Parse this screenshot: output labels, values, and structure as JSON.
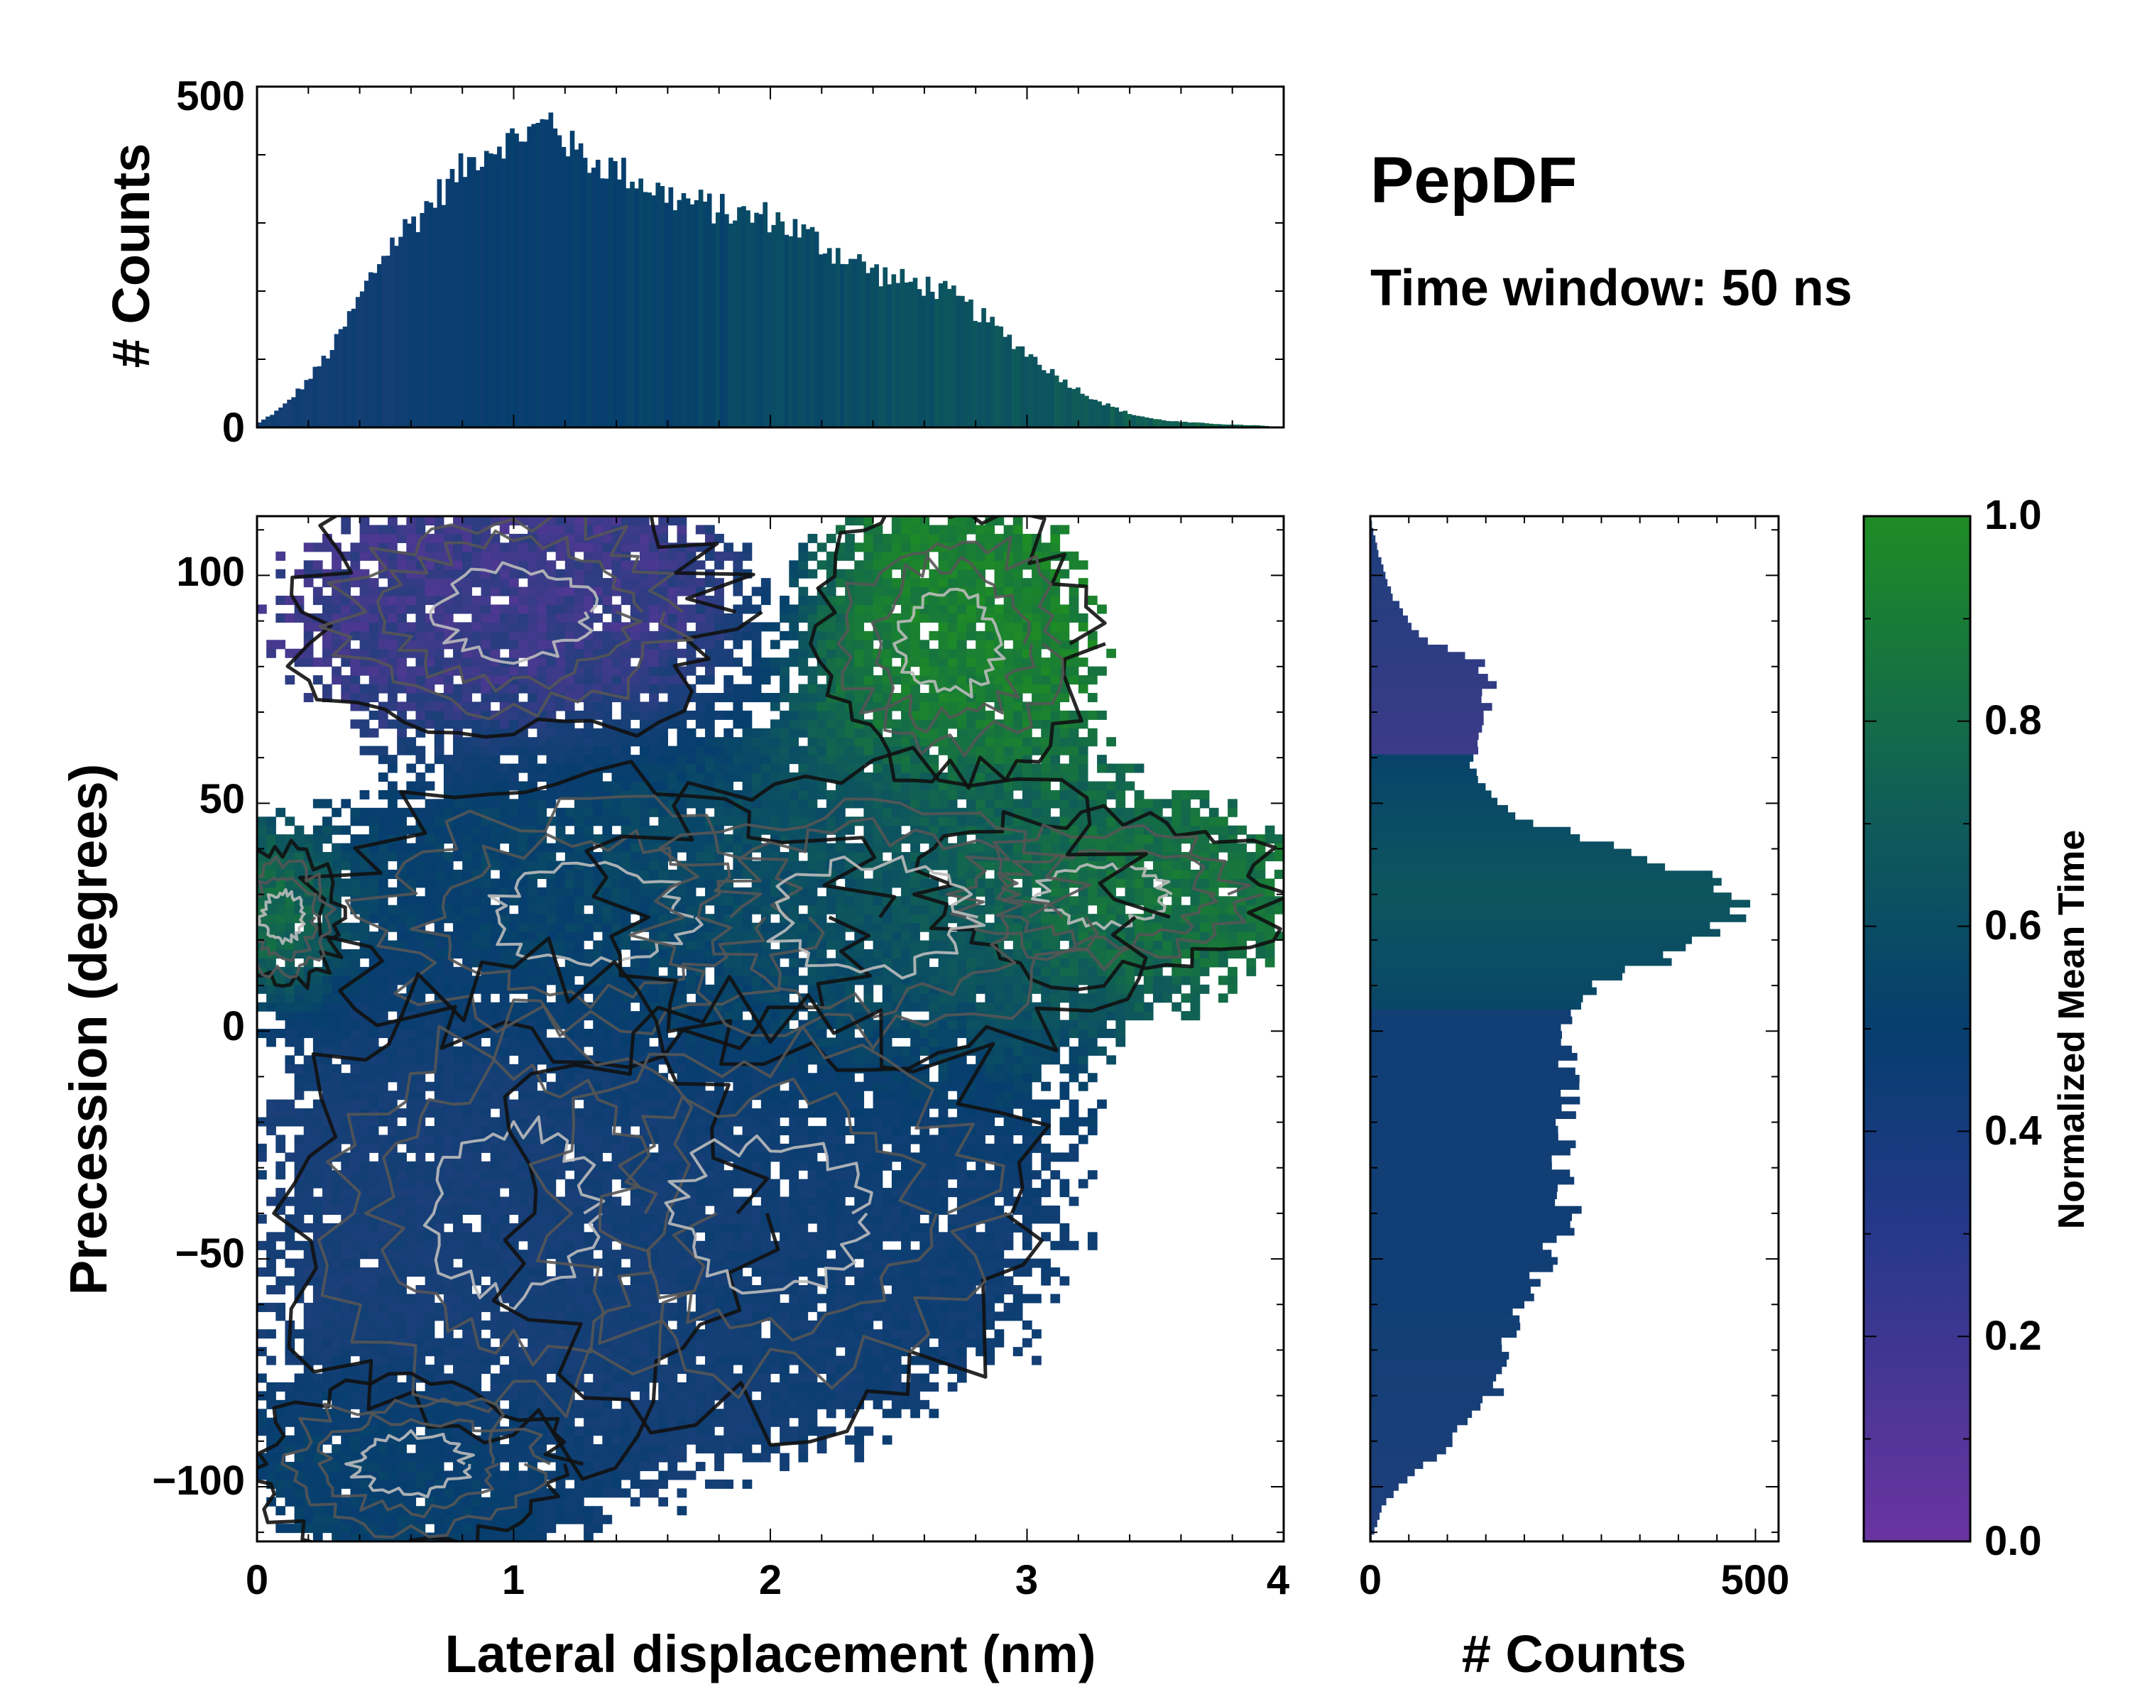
{
  "title": "PepDF",
  "subtitle": "Time window: 50 ns",
  "colors": {
    "purple": "#6b34a0",
    "blue": "#1d3f7a",
    "navy": "#063e6e",
    "teal": "#0f5b5a",
    "green": "#1e8c25",
    "contour_dark": "#111111",
    "contour_mid": "#555555",
    "contour_light": "#bbbbbb"
  },
  "chart_data": [
    {
      "id": "top-histogram",
      "type": "bar",
      "title": "",
      "xlabel": "",
      "ylabel": "# Counts",
      "xlim": [
        0,
        4
      ],
      "ylim": [
        0,
        500
      ],
      "yticks": [
        "0",
        "500"
      ],
      "bin_width": 0.0167,
      "x": [
        0.0,
        0.1,
        0.2,
        0.3,
        0.4,
        0.5,
        0.6,
        0.7,
        0.8,
        0.9,
        1.0,
        1.1,
        1.15,
        1.2,
        1.3,
        1.4,
        1.5,
        1.6,
        1.7,
        1.8,
        1.9,
        2.0,
        2.1,
        2.2,
        2.3,
        2.4,
        2.5,
        2.6,
        2.7,
        2.8,
        2.9,
        3.0,
        3.1,
        3.2,
        3.3,
        3.4,
        3.5,
        3.6,
        3.7,
        3.8,
        3.9,
        4.0
      ],
      "values": [
        5,
        30,
        70,
        120,
        190,
        260,
        300,
        340,
        380,
        410,
        425,
        440,
        455,
        420,
        390,
        380,
        360,
        340,
        330,
        320,
        310,
        310,
        290,
        270,
        250,
        230,
        215,
        210,
        195,
        170,
        140,
        110,
        80,
        55,
        35,
        20,
        12,
        8,
        6,
        4,
        3,
        0
      ]
    },
    {
      "id": "main-heatmap",
      "type": "heatmap",
      "xlabel": "Lateral displacement (nm)",
      "ylabel": "Precession (degrees)",
      "xlim": [
        0,
        4
      ],
      "ylim": [
        -112,
        113
      ],
      "xticks": [
        "0",
        "1",
        "2",
        "3",
        "4"
      ],
      "yticks": [
        "−100",
        "−50",
        "0",
        "50",
        "100"
      ],
      "ytick_values": [
        -100,
        -50,
        0,
        50,
        100
      ],
      "contours": true,
      "clusters": [
        {
          "x": 1.0,
          "y": 92,
          "time": 0.15,
          "sx": 0.55,
          "sy": 18
        },
        {
          "x": 2.7,
          "y": 85,
          "time": 0.95,
          "sx": 0.35,
          "sy": 20
        },
        {
          "x": 3.3,
          "y": 30,
          "time": 0.92,
          "sx": 0.45,
          "sy": 12
        },
        {
          "x": 1.3,
          "y": 25,
          "time": 0.55,
          "sx": 0.7,
          "sy": 20
        },
        {
          "x": 2.4,
          "y": 25,
          "time": 0.7,
          "sx": 0.7,
          "sy": 22
        },
        {
          "x": 1.0,
          "y": -40,
          "time": 0.3,
          "sx": 0.6,
          "sy": 35
        },
        {
          "x": 2.0,
          "y": -40,
          "time": 0.4,
          "sx": 0.7,
          "sy": 30
        },
        {
          "x": 0.6,
          "y": -95,
          "time": 0.55,
          "sx": 0.4,
          "sy": 12
        },
        {
          "x": 0.1,
          "y": 25,
          "time": 0.9,
          "sx": 0.15,
          "sy": 10
        }
      ]
    },
    {
      "id": "right-histogram",
      "type": "bar",
      "orientation": "horizontal",
      "xlabel": "# Counts",
      "ylabel": "",
      "xlim": [
        0,
        530
      ],
      "ylim": [
        -112,
        113
      ],
      "xticks": [
        "0",
        "500"
      ],
      "bin_width": 1.6,
      "y": [
        -112,
        -105,
        -100,
        -95,
        -90,
        -85,
        -80,
        -75,
        -70,
        -65,
        -60,
        -55,
        -50,
        -45,
        -40,
        -35,
        -30,
        -25,
        -20,
        -15,
        -10,
        -5,
        0,
        5,
        10,
        15,
        20,
        25,
        30,
        35,
        40,
        45,
        50,
        55,
        60,
        65,
        70,
        75,
        80,
        85,
        90,
        95,
        100,
        105,
        113
      ],
      "values": [
        0,
        15,
        35,
        70,
        110,
        130,
        160,
        175,
        180,
        190,
        200,
        215,
        230,
        245,
        255,
        260,
        255,
        250,
        260,
        260,
        255,
        250,
        250,
        270,
        300,
        370,
        430,
        470,
        480,
        420,
        330,
        220,
        170,
        140,
        130,
        135,
        145,
        155,
        150,
        80,
        50,
        30,
        20,
        10,
        0
      ]
    },
    {
      "id": "colorbar",
      "type": "colorbar",
      "label": "Normalized Mean Time",
      "range": [
        0.0,
        1.0
      ],
      "ticks": [
        "0.0",
        "0.2",
        "0.4",
        "0.6",
        "0.8",
        "1.0"
      ],
      "stops": [
        "#6b34a0",
        "#1d3f7a",
        "#063e6e",
        "#0f5b5a",
        "#1e8c25"
      ]
    }
  ]
}
